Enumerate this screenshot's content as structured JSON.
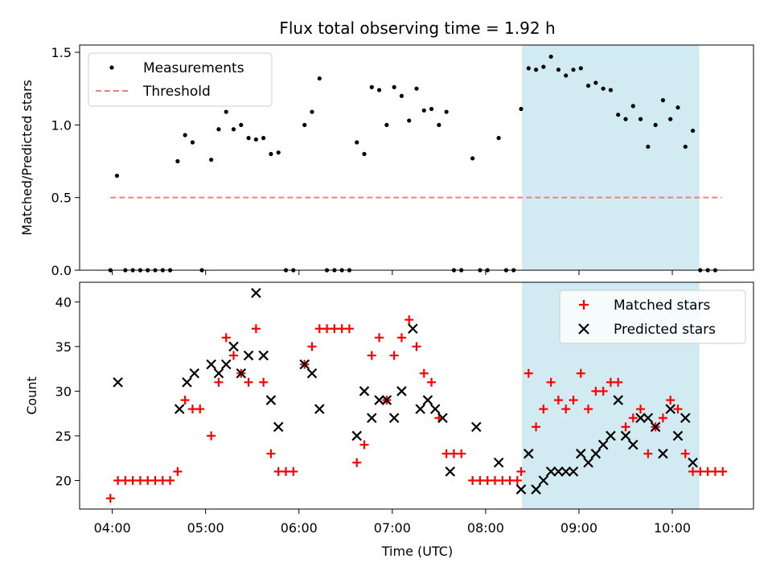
{
  "chart_data": {
    "title": "Flux total observing time = 1.92 h",
    "xlabel": "Time (UTC)",
    "x_ticks": [
      "04:00",
      "05:00",
      "06:00",
      "07:00",
      "08:00",
      "09:00",
      "10:00"
    ],
    "x_tick_hours": [
      4,
      5,
      6,
      7,
      8,
      9,
      10
    ],
    "xlim_hours": [
      3.65,
      10.87
    ],
    "shaded_span_hours": [
      8.39,
      10.29
    ],
    "shade_color": "#add8e6",
    "top": {
      "type": "scatter",
      "ylabel": "Matched/Predicted stars",
      "ylim": [
        0,
        1.55
      ],
      "y_ticks": [
        0.0,
        0.5,
        1.0,
        1.5
      ],
      "y_tick_labels": [
        "0.0",
        "0.5",
        "1.0",
        "1.5"
      ],
      "threshold": {
        "name": "Threshold",
        "value": 0.5,
        "x_range_hours": [
          3.98,
          10.53
        ],
        "color": "#f08080"
      },
      "measurements": {
        "name": "Measurements",
        "color": "#000000",
        "points": [
          [
            3.98,
            0
          ],
          [
            4.05,
            0.65
          ],
          [
            4.14,
            0
          ],
          [
            4.22,
            0
          ],
          [
            4.3,
            0
          ],
          [
            4.38,
            0
          ],
          [
            4.46,
            0
          ],
          [
            4.54,
            0
          ],
          [
            4.62,
            0
          ],
          [
            4.7,
            0.75
          ],
          [
            4.78,
            0.93
          ],
          [
            4.86,
            0.88
          ],
          [
            4.96,
            0
          ],
          [
            5.06,
            0.76
          ],
          [
            5.14,
            0.97
          ],
          [
            5.22,
            1.09
          ],
          [
            5.3,
            0.97
          ],
          [
            5.38,
            1.0
          ],
          [
            5.46,
            0.91
          ],
          [
            5.54,
            0.9
          ],
          [
            5.62,
            0.91
          ],
          [
            5.7,
            0.8
          ],
          [
            5.78,
            0.81
          ],
          [
            5.86,
            0
          ],
          [
            5.94,
            0
          ],
          [
            6.06,
            1.0
          ],
          [
            6.14,
            1.09
          ],
          [
            6.22,
            1.32
          ],
          [
            6.3,
            0
          ],
          [
            6.38,
            0
          ],
          [
            6.46,
            0
          ],
          [
            6.54,
            0
          ],
          [
            6.62,
            0.88
          ],
          [
            6.7,
            0.8
          ],
          [
            6.78,
            1.26
          ],
          [
            6.86,
            1.24
          ],
          [
            6.94,
            1.0
          ],
          [
            7.02,
            1.26
          ],
          [
            7.1,
            1.2
          ],
          [
            7.18,
            1.03
          ],
          [
            7.26,
            1.25
          ],
          [
            7.34,
            1.1
          ],
          [
            7.42,
            1.11
          ],
          [
            7.5,
            1.0
          ],
          [
            7.58,
            1.09
          ],
          [
            7.66,
            0
          ],
          [
            7.74,
            0
          ],
          [
            7.86,
            0.77
          ],
          [
            7.94,
            0
          ],
          [
            8.02,
            0
          ],
          [
            8.14,
            0.91
          ],
          [
            8.22,
            0
          ],
          [
            8.3,
            0
          ],
          [
            8.38,
            1.11
          ],
          [
            8.46,
            1.39
          ],
          [
            8.54,
            1.38
          ],
          [
            8.62,
            1.4
          ],
          [
            8.7,
            1.47
          ],
          [
            8.78,
            1.38
          ],
          [
            8.86,
            1.34
          ],
          [
            8.94,
            1.38
          ],
          [
            9.02,
            1.39
          ],
          [
            9.1,
            1.27
          ],
          [
            9.18,
            1.29
          ],
          [
            9.26,
            1.25
          ],
          [
            9.34,
            1.24
          ],
          [
            9.42,
            1.07
          ],
          [
            9.5,
            1.04
          ],
          [
            9.58,
            1.13
          ],
          [
            9.66,
            1.04
          ],
          [
            9.74,
            0.85
          ],
          [
            9.82,
            1.0
          ],
          [
            9.9,
            1.17
          ],
          [
            9.98,
            1.04
          ],
          [
            10.06,
            1.12
          ],
          [
            10.14,
            0.85
          ],
          [
            10.22,
            0.96
          ],
          [
            10.3,
            0
          ],
          [
            10.38,
            0
          ],
          [
            10.46,
            0
          ]
        ]
      }
    },
    "bottom": {
      "type": "scatter",
      "ylabel": "Count",
      "ylim": [
        16.8,
        42.2
      ],
      "y_ticks": [
        20,
        25,
        30,
        35,
        40
      ],
      "y_tick_labels": [
        "20",
        "25",
        "30",
        "35",
        "40"
      ],
      "series": [
        {
          "name": "Matched stars",
          "marker": "plus",
          "color": "#ff0000",
          "points": [
            [
              3.98,
              18
            ],
            [
              4.06,
              20
            ],
            [
              4.14,
              20
            ],
            [
              4.22,
              20
            ],
            [
              4.3,
              20
            ],
            [
              4.38,
              20
            ],
            [
              4.46,
              20
            ],
            [
              4.54,
              20
            ],
            [
              4.62,
              20
            ],
            [
              4.7,
              21
            ],
            [
              4.78,
              29
            ],
            [
              4.86,
              28
            ],
            [
              4.94,
              28
            ],
            [
              5.06,
              25
            ],
            [
              5.14,
              31
            ],
            [
              5.22,
              36
            ],
            [
              5.3,
              34
            ],
            [
              5.38,
              32
            ],
            [
              5.46,
              31
            ],
            [
              5.54,
              37
            ],
            [
              5.62,
              31
            ],
            [
              5.7,
              23
            ],
            [
              5.78,
              21
            ],
            [
              5.86,
              21
            ],
            [
              5.94,
              21
            ],
            [
              6.06,
              33
            ],
            [
              6.14,
              35
            ],
            [
              6.22,
              37
            ],
            [
              6.3,
              37
            ],
            [
              6.38,
              37
            ],
            [
              6.46,
              37
            ],
            [
              6.54,
              37
            ],
            [
              6.62,
              22
            ],
            [
              6.7,
              24
            ],
            [
              6.78,
              34
            ],
            [
              6.86,
              36
            ],
            [
              6.94,
              29
            ],
            [
              7.02,
              34
            ],
            [
              7.1,
              36
            ],
            [
              7.18,
              38
            ],
            [
              7.26,
              35
            ],
            [
              7.34,
              32
            ],
            [
              7.42,
              31
            ],
            [
              7.5,
              27
            ],
            [
              7.58,
              23
            ],
            [
              7.66,
              23
            ],
            [
              7.74,
              23
            ],
            [
              7.86,
              20
            ],
            [
              7.94,
              20
            ],
            [
              8.02,
              20
            ],
            [
              8.1,
              20
            ],
            [
              8.18,
              20
            ],
            [
              8.26,
              20
            ],
            [
              8.34,
              20
            ],
            [
              8.38,
              21
            ],
            [
              8.46,
              32
            ],
            [
              8.54,
              26
            ],
            [
              8.62,
              28
            ],
            [
              8.7,
              31
            ],
            [
              8.78,
              29
            ],
            [
              8.86,
              28
            ],
            [
              8.94,
              29
            ],
            [
              9.02,
              32
            ],
            [
              9.1,
              28
            ],
            [
              9.18,
              30
            ],
            [
              9.26,
              30
            ],
            [
              9.34,
              31
            ],
            [
              9.42,
              31
            ],
            [
              9.5,
              26
            ],
            [
              9.58,
              27
            ],
            [
              9.66,
              28
            ],
            [
              9.74,
              23
            ],
            [
              9.82,
              26
            ],
            [
              9.9,
              27
            ],
            [
              9.98,
              29
            ],
            [
              10.06,
              28
            ],
            [
              10.14,
              23
            ],
            [
              10.22,
              21
            ],
            [
              10.3,
              21
            ],
            [
              10.38,
              21
            ],
            [
              10.46,
              21
            ],
            [
              10.54,
              21
            ]
          ]
        },
        {
          "name": "Predicted stars",
          "marker": "x",
          "color": "#000000",
          "points": [
            [
              4.06,
              31
            ],
            [
              4.72,
              28
            ],
            [
              4.8,
              31
            ],
            [
              4.88,
              32
            ],
            [
              5.06,
              33
            ],
            [
              5.14,
              32
            ],
            [
              5.22,
              33
            ],
            [
              5.3,
              35
            ],
            [
              5.38,
              32
            ],
            [
              5.46,
              34
            ],
            [
              5.54,
              41
            ],
            [
              5.62,
              34
            ],
            [
              5.7,
              29
            ],
            [
              5.78,
              26
            ],
            [
              6.06,
              33
            ],
            [
              6.14,
              32
            ],
            [
              6.22,
              28
            ],
            [
              6.62,
              25
            ],
            [
              6.7,
              30
            ],
            [
              6.78,
              27
            ],
            [
              6.86,
              29
            ],
            [
              6.94,
              29
            ],
            [
              7.02,
              27
            ],
            [
              7.1,
              30
            ],
            [
              7.22,
              37
            ],
            [
              7.3,
              28
            ],
            [
              7.38,
              29
            ],
            [
              7.46,
              28
            ],
            [
              7.54,
              27
            ],
            [
              7.62,
              21
            ],
            [
              7.9,
              26
            ],
            [
              8.14,
              22
            ],
            [
              8.38,
              19
            ],
            [
              8.46,
              23
            ],
            [
              8.54,
              19
            ],
            [
              8.62,
              20
            ],
            [
              8.7,
              21
            ],
            [
              8.78,
              21
            ],
            [
              8.86,
              21
            ],
            [
              8.94,
              21
            ],
            [
              9.02,
              23
            ],
            [
              9.1,
              22
            ],
            [
              9.18,
              23
            ],
            [
              9.26,
              24
            ],
            [
              9.34,
              25
            ],
            [
              9.42,
              29
            ],
            [
              9.5,
              25
            ],
            [
              9.58,
              24
            ],
            [
              9.66,
              27
            ],
            [
              9.74,
              27
            ],
            [
              9.82,
              26
            ],
            [
              9.9,
              23
            ],
            [
              9.98,
              28
            ],
            [
              10.06,
              25
            ],
            [
              10.14,
              27
            ],
            [
              10.22,
              22
            ]
          ]
        }
      ]
    }
  }
}
